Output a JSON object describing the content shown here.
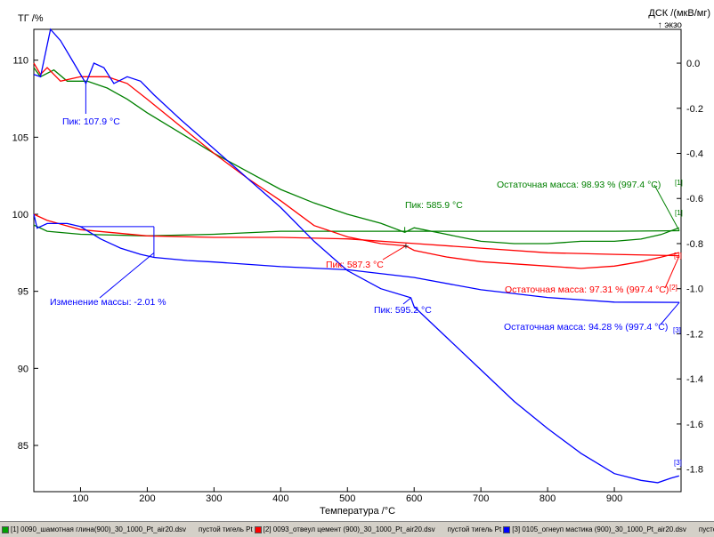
{
  "chart_data": {
    "type": "line",
    "xlabel": "Температура /°C",
    "ylabel_left": "ТГ /%",
    "ylabel_right": "ДСК /(мкВ/мг)",
    "right_axis_note": "↑ экзо",
    "xlim": [
      30,
      1000
    ],
    "ylim_left": [
      82,
      112
    ],
    "ylim_right": [
      -1.9,
      0.15
    ],
    "x_ticks": [
      100,
      200,
      300,
      400,
      500,
      600,
      700,
      800,
      900
    ],
    "y_left_ticks": [
      85,
      90,
      95,
      100,
      105,
      110
    ],
    "y_right_ticks": [
      0.0,
      -0.2,
      -0.4,
      -0.6,
      -0.8,
      -1.0,
      -1.2,
      -1.4,
      -1.6,
      -1.8
    ],
    "y_right_tick_labels": [
      "0.0",
      "-0.2",
      "-0.4",
      "-0.6",
      "-0.8",
      "-1.0",
      "-1.2",
      "-1.4",
      "-1.6",
      "-1.8"
    ],
    "grid": "none",
    "series": [
      {
        "axis": "left",
        "color": "#008000",
        "x": [
          30,
          50,
          100,
          200,
          300,
          400,
          500,
          600,
          700,
          800,
          900,
          997.4
        ],
        "y": [
          99.3,
          98.9,
          98.7,
          98.6,
          98.7,
          98.9,
          98.9,
          98.9,
          98.9,
          98.9,
          98.9,
          98.93
        ]
      },
      {
        "axis": "left",
        "color": "#ff0000",
        "x": [
          30,
          50,
          100,
          200,
          300,
          400,
          500,
          600,
          700,
          800,
          900,
          997.4
        ],
        "y": [
          100.0,
          99.6,
          99.0,
          98.6,
          98.5,
          98.5,
          98.4,
          98.1,
          97.8,
          97.5,
          97.4,
          97.31
        ]
      },
      {
        "axis": "left",
        "color": "#0000ff",
        "x": [
          30,
          35,
          50,
          80,
          100,
          130,
          160,
          190,
          210,
          260,
          300,
          400,
          500,
          600,
          700,
          800,
          900,
          997.4
        ],
        "y": [
          100.0,
          99.1,
          99.4,
          99.4,
          99.2,
          98.4,
          97.8,
          97.4,
          97.2,
          97.0,
          96.9,
          96.6,
          96.4,
          95.9,
          95.1,
          94.6,
          94.3,
          94.28
        ]
      },
      {
        "axis": "right",
        "color": "#008000",
        "x": [
          30,
          40,
          60,
          80,
          110,
          140,
          170,
          200,
          250,
          300,
          350,
          400,
          450,
          500,
          550,
          586,
          600,
          650,
          700,
          750,
          800,
          850,
          900,
          940,
          970,
          997
        ],
        "y": [
          -0.02,
          -0.06,
          -0.03,
          -0.08,
          -0.08,
          -0.11,
          -0.16,
          -0.22,
          -0.31,
          -0.4,
          -0.48,
          -0.56,
          -0.62,
          -0.67,
          -0.71,
          -0.75,
          -0.73,
          -0.76,
          -0.79,
          -0.8,
          -0.8,
          -0.79,
          -0.79,
          -0.78,
          -0.76,
          -0.73
        ]
      },
      {
        "axis": "right",
        "color": "#ff0000",
        "x": [
          30,
          40,
          50,
          70,
          100,
          140,
          170,
          200,
          250,
          300,
          350,
          400,
          450,
          500,
          550,
          587,
          600,
          650,
          700,
          750,
          800,
          850,
          900,
          940,
          970,
          997
        ],
        "y": [
          0.0,
          -0.05,
          -0.02,
          -0.08,
          -0.06,
          -0.06,
          -0.09,
          -0.16,
          -0.28,
          -0.4,
          -0.51,
          -0.61,
          -0.72,
          -0.77,
          -0.8,
          -0.81,
          -0.83,
          -0.86,
          -0.88,
          -0.89,
          -0.9,
          -0.91,
          -0.9,
          -0.88,
          -0.86,
          -0.84
        ]
      },
      {
        "axis": "right",
        "color": "#0000ff",
        "x": [
          30,
          40,
          55,
          70,
          90,
          108,
          120,
          135,
          150,
          170,
          190,
          210,
          250,
          300,
          350,
          400,
          450,
          500,
          550,
          595,
          600,
          650,
          700,
          750,
          800,
          850,
          900,
          940,
          965,
          985,
          997
        ],
        "y": [
          -0.05,
          -0.06,
          0.15,
          0.1,
          0.0,
          -0.09,
          0.0,
          -0.02,
          -0.09,
          -0.06,
          -0.08,
          -0.14,
          -0.25,
          -0.38,
          -0.51,
          -0.64,
          -0.79,
          -0.92,
          -1.0,
          -1.04,
          -1.08,
          -1.22,
          -1.36,
          -1.5,
          -1.62,
          -1.73,
          -1.82,
          -1.85,
          -1.86,
          -1.84,
          -1.83
        ]
      }
    ],
    "annotations": {
      "peak_blue_1": "Пик: 107.9 °C",
      "peak_green": "Пик: 585.9 °C",
      "peak_red": "Пик: 587.3 °C",
      "peak_blue_2": "Пик: 595.2 °C",
      "mass_change": "Изменение массы: -2.01 %",
      "residual_green": "Остаточная масса: 98.93 % (997.4 °C)",
      "residual_red": "Остаточная масса: 97.31 % (997.4 °C)",
      "residual_blue": "Остаточная масса: 94.28 % (997.4 °C)"
    },
    "curve_tags": [
      "[1]",
      "[1]",
      "[2]",
      "[2]",
      "[3]",
      "[3]"
    ],
    "legend_position": "bottom"
  },
  "colors": {
    "green": "#008000",
    "red": "#ff0000",
    "blue": "#0000ff",
    "legend_bg": "#d4d0c8"
  },
  "legend": {
    "items": [
      {
        "color": "#00a000",
        "label": "[1] 0090_шамотная глина(900)_30_1000_Pt_air20.dsv",
        "blank": "пустой тигель Pt"
      },
      {
        "color": "#ff0000",
        "label": "[2] 0093_отвеул цемент (900)_30_1000_Pt_air20.dsv",
        "blank": "пустой тигель Pt"
      },
      {
        "color": "#0000ff",
        "label": "[3] 0105_огнеуп мастика (900)_30_1000_Pt_air20.dsv",
        "blank": "пустой тигель Pt"
      }
    ]
  }
}
